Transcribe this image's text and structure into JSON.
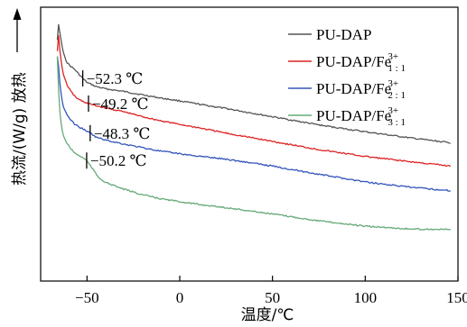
{
  "chart_data": {
    "type": "line",
    "title": "",
    "xlabel": "温度/℃",
    "ylabel": "热流/(W/g) 放热",
    "xlim": [
      -75,
      150
    ],
    "x_ticks": [
      -50,
      0,
      50,
      100,
      150
    ],
    "y_ticks": [],
    "grid": false,
    "legend_position": "top-right",
    "series": [
      {
        "name": "PU-DAP",
        "legend_base": "PU-DAP",
        "legend_sup": "",
        "legend_sub": "",
        "color": "#555555",
        "x": [
          -66,
          -65.3,
          -64.5,
          -63,
          -61,
          -59,
          -57,
          -55,
          -52.3,
          -50,
          -45,
          -40,
          -30,
          -20,
          -10,
          0,
          10,
          25,
          50,
          75,
          100,
          125,
          146
        ],
        "y": [
          0.88,
          0.94,
          0.9,
          0.84,
          0.8,
          0.785,
          0.775,
          0.76,
          0.74,
          0.725,
          0.71,
          0.702,
          0.692,
          0.68,
          0.668,
          0.658,
          0.646,
          0.63,
          0.6,
          0.57,
          0.545,
          0.522,
          0.505
        ]
      },
      {
        "name": "PU-DAP/Fe3+1:1",
        "legend_base": "PU-DAP/Fe",
        "legend_sup": "3+",
        "legend_sub": "1 : 1",
        "color": "#dd2222",
        "x": [
          -66,
          -65.3,
          -64.5,
          -63,
          -61,
          -59,
          -57,
          -55,
          -52,
          -49.2,
          -45,
          -40,
          -30,
          -20,
          -10,
          0,
          10,
          25,
          50,
          75,
          100,
          125,
          146
        ],
        "y": [
          0.84,
          0.9,
          0.83,
          0.76,
          0.72,
          0.695,
          0.678,
          0.665,
          0.655,
          0.648,
          0.64,
          0.632,
          0.618,
          0.6,
          0.585,
          0.572,
          0.56,
          0.54,
          0.51,
          0.48,
          0.455,
          0.435,
          0.42
        ]
      },
      {
        "name": "PU-DAP/Fe3+2:1",
        "legend_base": "PU-DAP/Fe",
        "legend_sup": "3+",
        "legend_sub": "2 : 1",
        "color": "#3355bb",
        "x": [
          -66,
          -65.5,
          -64.5,
          -63,
          -61,
          -59,
          -57,
          -55,
          -52,
          -48.3,
          -45,
          -40,
          -30,
          -20,
          -10,
          0,
          10,
          25,
          50,
          75,
          100,
          125,
          146
        ],
        "y": [
          0.82,
          0.8,
          0.71,
          0.64,
          0.61,
          0.59,
          0.575,
          0.565,
          0.555,
          0.54,
          0.525,
          0.515,
          0.5,
          0.487,
          0.474,
          0.465,
          0.456,
          0.445,
          0.42,
          0.39,
          0.362,
          0.342,
          0.33
        ]
      },
      {
        "name": "PU-DAP/Fe3+3:1",
        "legend_base": "PU-DAP/Fe",
        "legend_sup": "3+",
        "legend_sub": "3 : 1",
        "color": "#66aa77",
        "x": [
          -66,
          -65.5,
          -64.5,
          -63,
          -61,
          -59,
          -57,
          -55,
          -52,
          -50.2,
          -47,
          -44,
          -40,
          -30,
          -20,
          -10,
          0,
          10,
          25,
          50,
          75,
          100,
          125,
          146
        ],
        "y": [
          0.82,
          0.72,
          0.6,
          0.535,
          0.505,
          0.485,
          0.47,
          0.46,
          0.45,
          0.44,
          0.41,
          0.38,
          0.36,
          0.335,
          0.315,
          0.3,
          0.29,
          0.28,
          0.268,
          0.245,
          0.22,
          0.2,
          0.19,
          0.188
        ]
      }
    ],
    "annotations": [
      {
        "text": "−52.3 ℃",
        "x": -52.3,
        "series": 0
      },
      {
        "text": "−49.2 ℃",
        "x": -49.2,
        "series": 1
      },
      {
        "text": "−48.3 ℃",
        "x": -48.3,
        "series": 2
      },
      {
        "text": "−50.2 ℃",
        "x": -50.2,
        "series": 3
      }
    ]
  }
}
